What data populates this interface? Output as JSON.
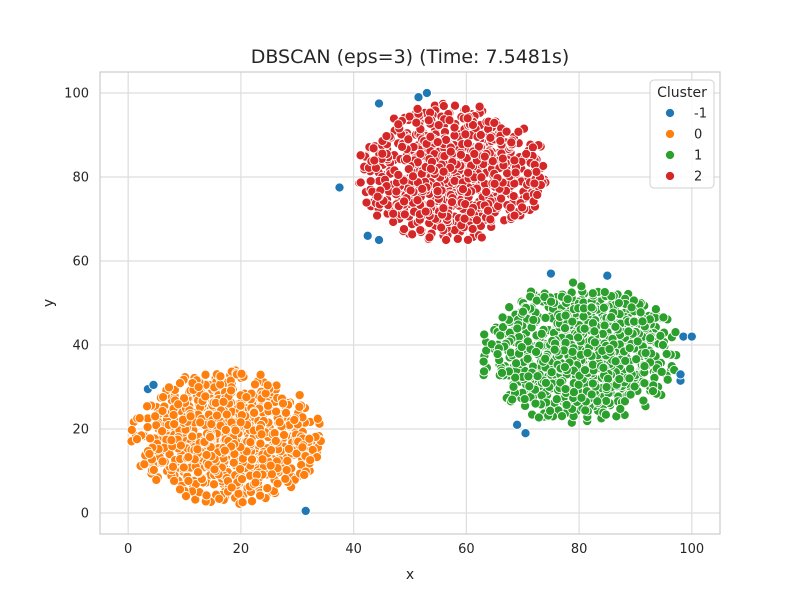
{
  "chart_data": {
    "type": "scatter",
    "title": "DBSCAN (eps=3) (Time: 7.5481s)",
    "xlabel": "x",
    "ylabel": "y",
    "xlim": [
      -5,
      105
    ],
    "ylim": [
      -5,
      105
    ],
    "x_ticks": [
      0,
      20,
      40,
      60,
      80,
      100
    ],
    "y_ticks": [
      0,
      20,
      40,
      60,
      80,
      100
    ],
    "grid": true,
    "legend": {
      "title": "Cluster",
      "placement": "top-right"
    },
    "series": [
      {
        "name": "-1",
        "color": "#1f77b4",
        "points": [
          [
            3.5,
            29.5
          ],
          [
            4.5,
            30.5
          ],
          [
            31.5,
            0.5
          ],
          [
            37.5,
            77.5
          ],
          [
            42.5,
            66
          ],
          [
            44.5,
            65
          ],
          [
            44.5,
            97.5
          ],
          [
            51.5,
            99
          ],
          [
            53,
            100
          ],
          [
            69,
            21
          ],
          [
            70.5,
            19
          ],
          [
            75,
            57
          ],
          [
            85,
            56.5
          ],
          [
            98,
            31.5
          ],
          [
            98,
            33
          ],
          [
            98.5,
            42
          ],
          [
            100,
            42
          ]
        ]
      },
      {
        "name": "0",
        "color": "#ff7f0e",
        "cluster": {
          "center": [
            17.5,
            18
          ],
          "radius_x": 17,
          "radius_y": 16,
          "count": 900,
          "seed": 11
        }
      },
      {
        "name": "1",
        "color": "#2ca02c",
        "cluster": {
          "center": [
            80,
            38
          ],
          "radius_x": 18,
          "radius_y": 17,
          "count": 900,
          "seed": 23
        }
      },
      {
        "name": "2",
        "color": "#d62728",
        "cluster": {
          "center": [
            57.5,
            81
          ],
          "radius_x": 17,
          "radius_y": 16.5,
          "count": 900,
          "seed": 37
        }
      }
    ]
  }
}
